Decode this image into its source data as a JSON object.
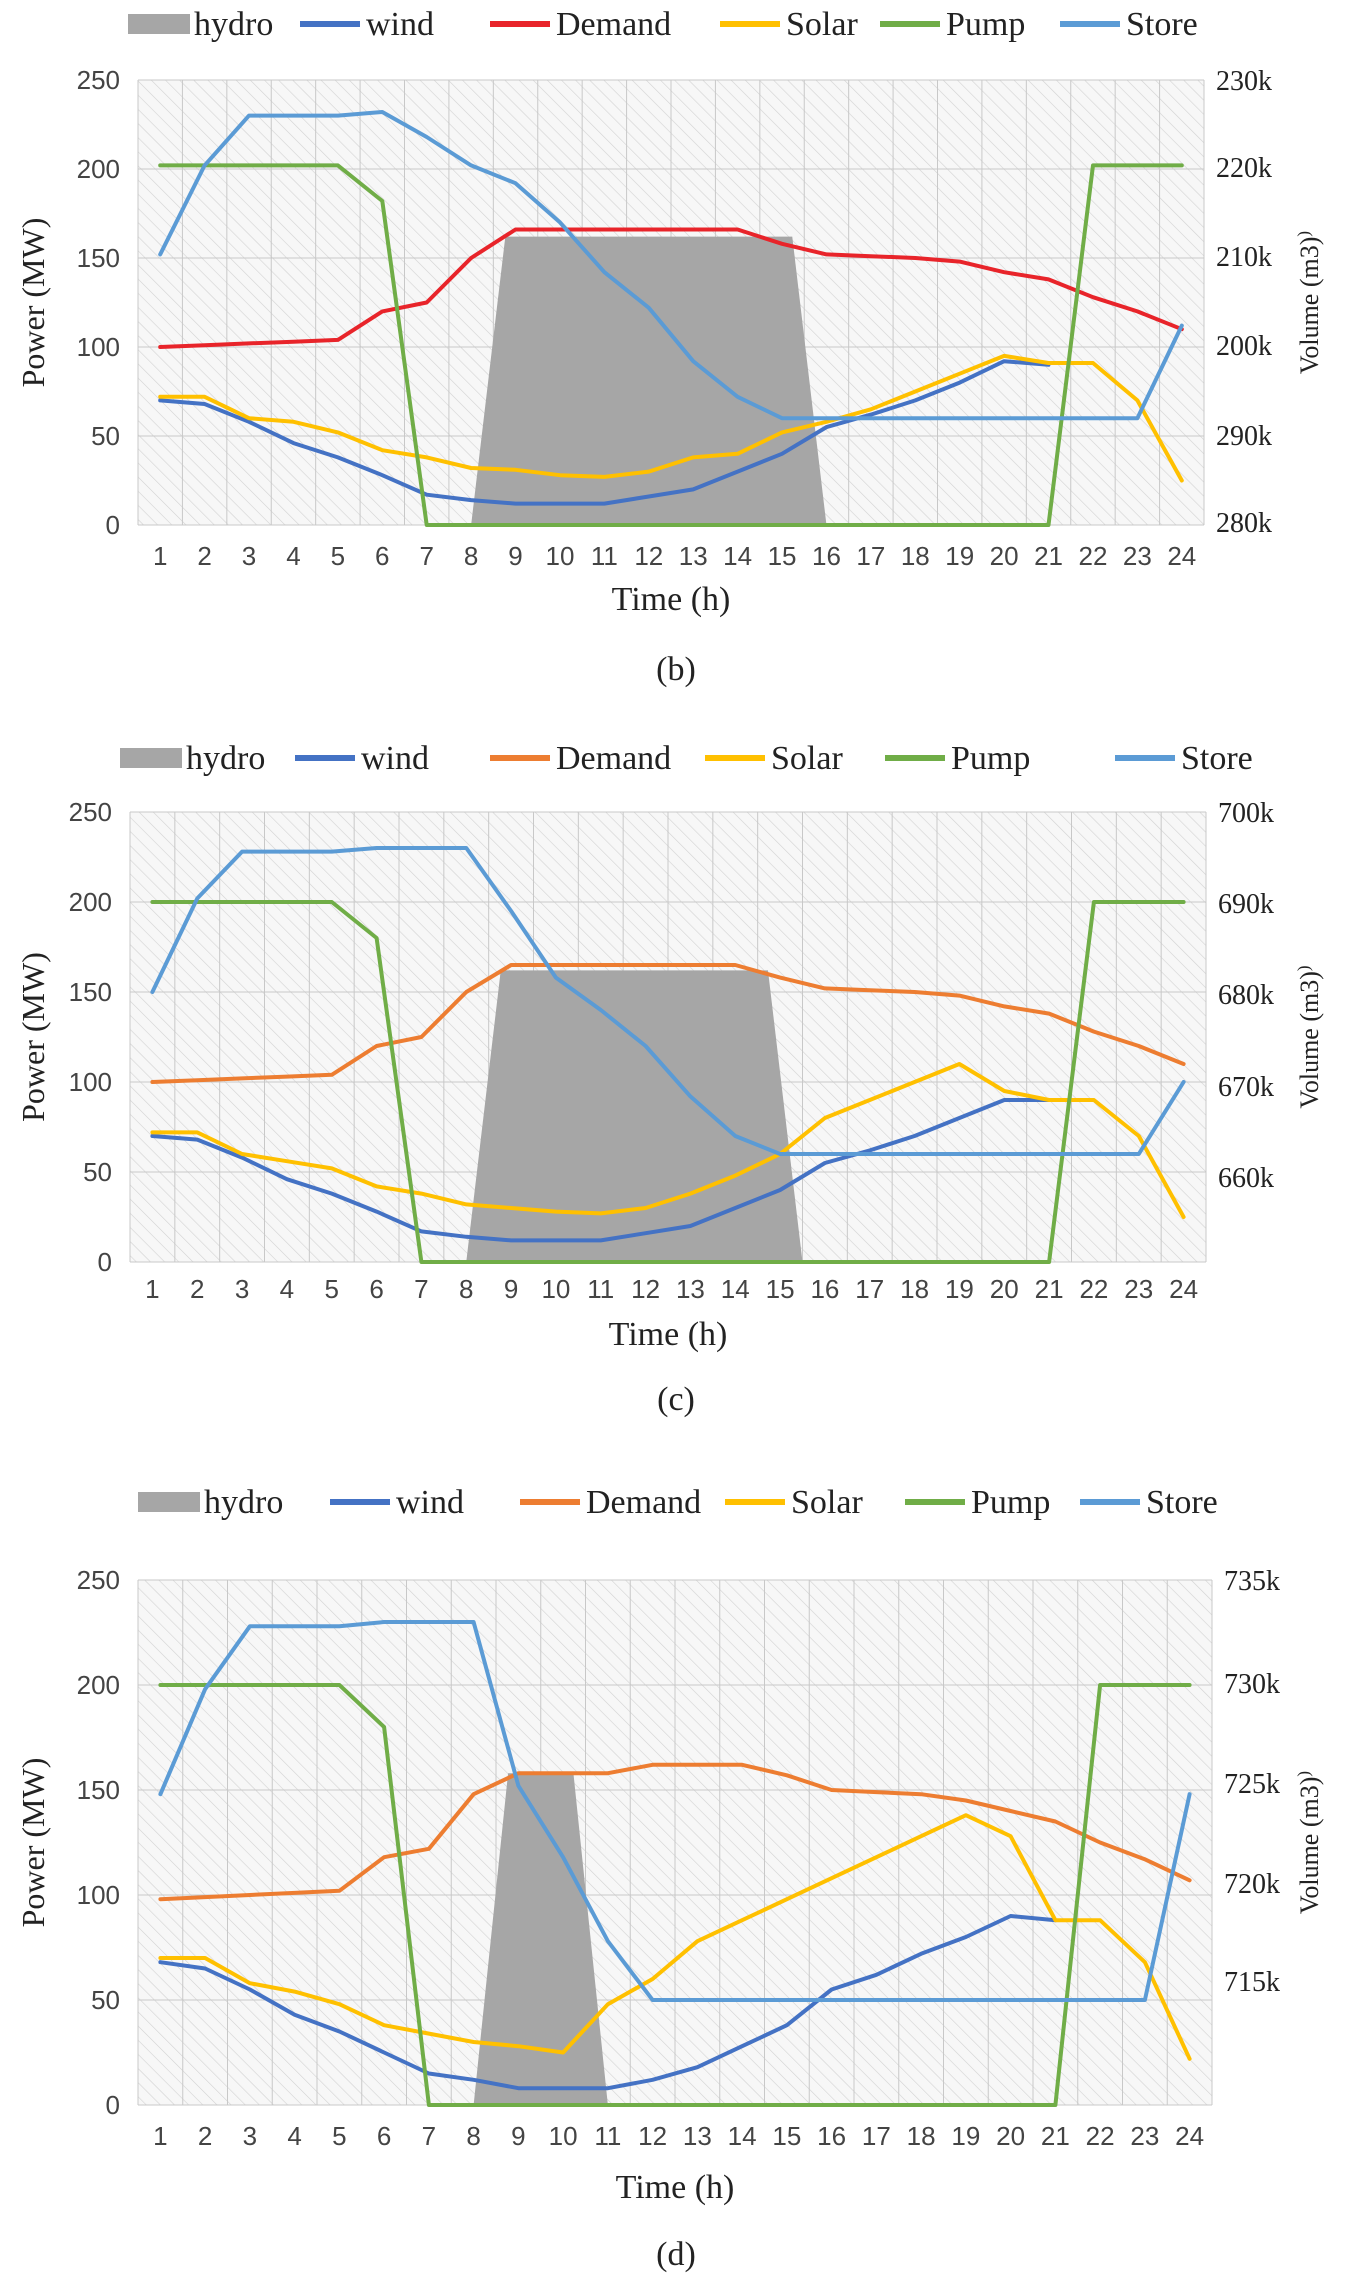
{
  "chart_data": [
    {
      "panel": "(b)",
      "type": "line",
      "caption": "(b)",
      "xlabel": "Time (h)",
      "ylabel": "Power (MW)",
      "y2label": "Volume (m3)",
      "x": [
        1,
        2,
        3,
        4,
        5,
        6,
        7,
        8,
        9,
        10,
        11,
        12,
        13,
        14,
        15,
        16,
        17,
        18,
        19,
        20,
        21,
        22,
        23,
        24
      ],
      "y_ticks": [
        "250",
        "200",
        "150",
        "100",
        "50",
        "0"
      ],
      "y2_ticks": [
        "230k",
        "220k",
        "210k",
        "200k",
        "290k",
        "280k"
      ],
      "ylim": [
        0,
        250
      ],
      "y2lim": [
        280000,
        230000
      ],
      "legend": [
        "hydro",
        "wind",
        "Demand",
        "Solar",
        "Pump",
        "Store"
      ],
      "hydro_band": {
        "start": 8,
        "end": 16,
        "level": 162
      },
      "series": [
        {
          "name": "wind",
          "color": "#4472C4",
          "values": [
            70,
            68,
            58,
            46,
            38,
            28,
            17,
            14,
            12,
            12,
            12,
            16,
            20,
            30,
            40,
            55,
            62,
            70,
            80,
            92,
            90,
            null,
            null,
            null
          ]
        },
        {
          "name": "Demand",
          "color": "#E8242A",
          "values": [
            100,
            101,
            102,
            103,
            104,
            120,
            125,
            150,
            166,
            166,
            166,
            166,
            166,
            166,
            158,
            152,
            151,
            150,
            148,
            142,
            138,
            128,
            120,
            110
          ]
        },
        {
          "name": "Solar",
          "color": "#FFC000",
          "values": [
            72,
            72,
            60,
            58,
            52,
            42,
            38,
            32,
            31,
            28,
            27,
            30,
            38,
            40,
            52,
            58,
            65,
            75,
            85,
            95,
            91,
            91,
            70,
            25
          ]
        },
        {
          "name": "Pump",
          "color": "#70AD47",
          "values": [
            202,
            202,
            202,
            202,
            202,
            182,
            0,
            0,
            0,
            0,
            0,
            0,
            0,
            0,
            0,
            0,
            0,
            0,
            0,
            0,
            0,
            202,
            202,
            202
          ]
        },
        {
          "name": "Store",
          "color": "#5B9BD5",
          "values": [
            152,
            202,
            230,
            230,
            230,
            232,
            218,
            202,
            192,
            170,
            142,
            122,
            92,
            72,
            60,
            60,
            60,
            60,
            60,
            60,
            60,
            60,
            60,
            112
          ]
        }
      ]
    },
    {
      "panel": "(c)",
      "type": "line",
      "caption": "(c)",
      "xlabel": "Time (h)",
      "ylabel": "Power (MW)",
      "y2label": "Volume (m3)",
      "x": [
        1,
        2,
        3,
        4,
        5,
        6,
        7,
        8,
        9,
        10,
        11,
        12,
        13,
        14,
        15,
        16,
        17,
        18,
        19,
        20,
        21,
        22,
        23,
        24
      ],
      "y_ticks": [
        "250",
        "200",
        "150",
        "100",
        "50",
        "0"
      ],
      "y2_ticks": [
        "700k",
        "690k",
        "680k",
        "670k",
        "660k"
      ],
      "ylim": [
        0,
        250
      ],
      "y2lim": [
        650000,
        700000
      ],
      "legend": [
        "hydro",
        "wind",
        "Demand",
        "Solar",
        "Pump",
        "Store"
      ],
      "hydro_band": {
        "start": 8,
        "end": 15.5,
        "level": 162
      },
      "series": [
        {
          "name": "wind",
          "color": "#4472C4",
          "values": [
            70,
            68,
            58,
            46,
            38,
            28,
            17,
            14,
            12,
            12,
            12,
            16,
            20,
            30,
            40,
            55,
            62,
            70,
            80,
            90,
            90,
            null,
            null,
            null
          ]
        },
        {
          "name": "Demand",
          "color": "#ED7D31",
          "values": [
            100,
            101,
            102,
            103,
            104,
            120,
            125,
            150,
            165,
            165,
            165,
            165,
            165,
            165,
            158,
            152,
            151,
            150,
            148,
            142,
            138,
            128,
            120,
            110
          ]
        },
        {
          "name": "Solar",
          "color": "#FFC000",
          "values": [
            72,
            72,
            60,
            56,
            52,
            42,
            38,
            32,
            30,
            28,
            27,
            30,
            38,
            48,
            60,
            80,
            90,
            100,
            110,
            95,
            90,
            90,
            70,
            25
          ]
        },
        {
          "name": "Pump",
          "color": "#70AD47",
          "values": [
            200,
            200,
            200,
            200,
            200,
            180,
            0,
            0,
            0,
            0,
            0,
            0,
            0,
            0,
            0,
            0,
            0,
            0,
            0,
            0,
            0,
            200,
            200,
            200
          ]
        },
        {
          "name": "Store",
          "color": "#5B9BD5",
          "values": [
            150,
            202,
            228,
            228,
            228,
            230,
            230,
            230,
            195,
            158,
            140,
            120,
            92,
            70,
            60,
            60,
            60,
            60,
            60,
            60,
            60,
            60,
            60,
            100
          ]
        }
      ]
    },
    {
      "panel": "(d)",
      "type": "line",
      "caption": "(d)",
      "xlabel": "Time (h)",
      "ylabel": "Power (MW)",
      "y2label": "Volume (m3)",
      "x": [
        1,
        2,
        3,
        4,
        5,
        6,
        7,
        8,
        9,
        10,
        11,
        12,
        13,
        14,
        15,
        16,
        17,
        18,
        19,
        20,
        21,
        22,
        23,
        24
      ],
      "y_ticks": [
        "250",
        "200",
        "150",
        "100",
        "50",
        "0"
      ],
      "y2_ticks": [
        "735k",
        "730k",
        "725k",
        "720k",
        "715k"
      ],
      "ylim": [
        0,
        250
      ],
      "y2lim": [
        710000,
        735000
      ],
      "legend": [
        "hydro",
        "wind",
        "Demand",
        "Solar",
        "Pump",
        "Store"
      ],
      "hydro_band": {
        "start": 8,
        "end": 11,
        "level": 158
      },
      "series": [
        {
          "name": "wind",
          "color": "#4472C4",
          "values": [
            68,
            65,
            55,
            43,
            35,
            25,
            15,
            12,
            8,
            8,
            8,
            12,
            18,
            28,
            38,
            55,
            62,
            72,
            80,
            90,
            88,
            null,
            null,
            null
          ]
        },
        {
          "name": "Demand",
          "color": "#ED7D31",
          "values": [
            98,
            99,
            100,
            101,
            102,
            118,
            122,
            148,
            158,
            158,
            158,
            162,
            162,
            162,
            157,
            150,
            149,
            148,
            145,
            140,
            135,
            125,
            117,
            107
          ]
        },
        {
          "name": "Solar",
          "color": "#FFC000",
          "values": [
            70,
            70,
            58,
            54,
            48,
            38,
            34,
            30,
            28,
            25,
            48,
            60,
            78,
            88,
            98,
            108,
            118,
            128,
            138,
            128,
            88,
            88,
            68,
            22
          ]
        },
        {
          "name": "Pump",
          "color": "#70AD47",
          "values": [
            200,
            200,
            200,
            200,
            200,
            180,
            0,
            0,
            0,
            0,
            0,
            0,
            0,
            0,
            0,
            0,
            0,
            0,
            0,
            0,
            0,
            200,
            200,
            200
          ]
        },
        {
          "name": "Store",
          "color": "#5B9BD5",
          "values": [
            148,
            198,
            228,
            228,
            228,
            230,
            230,
            230,
            152,
            118,
            78,
            50,
            50,
            50,
            50,
            50,
            50,
            50,
            50,
            50,
            50,
            50,
            50,
            148
          ]
        }
      ]
    }
  ]
}
